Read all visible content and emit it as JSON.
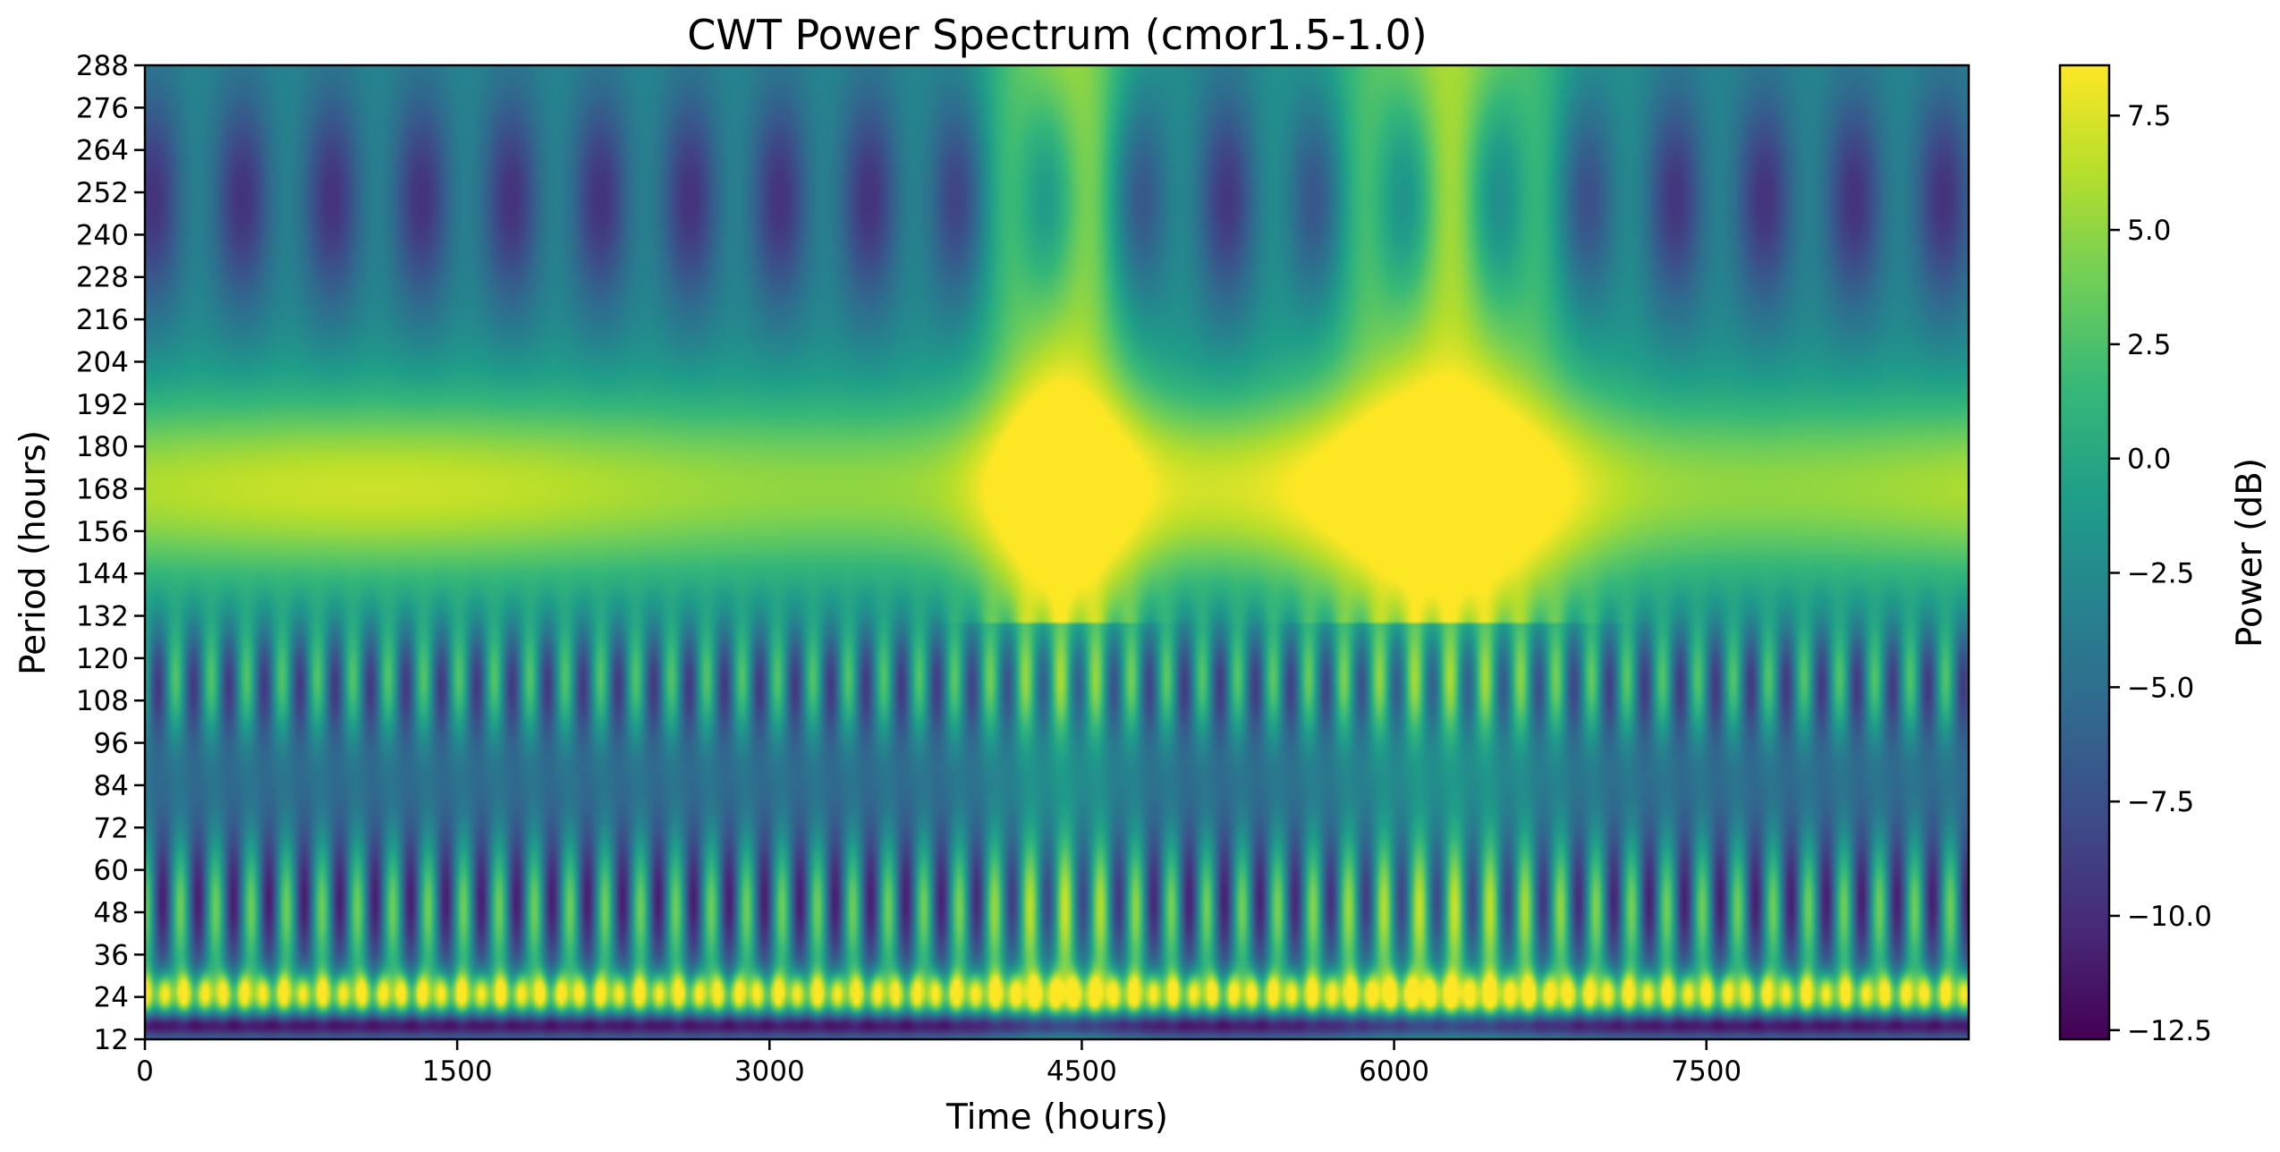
{
  "chart_data": {
    "type": "heatmap",
    "title": "CWT Power Spectrum (cmor1.5-1.0)",
    "xlabel": "Time (hours)",
    "ylabel": "Period (hours)",
    "colorbar_label": "Power (dB)",
    "colormap": "viridis",
    "grid": false,
    "x_range": [
      0,
      8760
    ],
    "y_range": [
      12,
      288
    ],
    "x_ticks": [
      0,
      1500,
      3000,
      4500,
      6000,
      7500
    ],
    "x_tick_labels": [
      "0",
      "1500",
      "3000",
      "4500",
      "6000",
      "7500"
    ],
    "y_ticks": [
      12,
      24,
      36,
      48,
      60,
      72,
      84,
      96,
      108,
      120,
      132,
      144,
      156,
      168,
      180,
      192,
      204,
      216,
      228,
      240,
      252,
      264,
      276,
      288
    ],
    "y_tick_labels": [
      "12",
      "24",
      "36",
      "48",
      "60",
      "72",
      "84",
      "96",
      "108",
      "120",
      "132",
      "144",
      "156",
      "168",
      "180",
      "192",
      "204",
      "216",
      "228",
      "240",
      "252",
      "264",
      "276",
      "288"
    ],
    "color_range": [
      -12.7,
      8.6
    ],
    "colorbar_ticks": [
      -12.5,
      -10.0,
      -7.5,
      -5.0,
      -2.5,
      0.0,
      2.5,
      5.0,
      7.5
    ],
    "colorbar_tick_labels": [
      "−12.5",
      "−10.0",
      "−7.5",
      "−5.0",
      "−2.5",
      "0.0",
      "2.5",
      "5.0",
      "7.5"
    ],
    "bands": [
      {
        "period_center": 25,
        "power_db": 7.5
      },
      {
        "period_center": 168,
        "power_db": 6.5
      },
      {
        "period_center": 264,
        "power_db": -3.0
      }
    ],
    "high_power_episodes": [
      {
        "time_start": 4150,
        "time_end": 4650,
        "power_db": 8.5
      },
      {
        "time_start": 5850,
        "time_end": 6650,
        "power_db": 8.5
      }
    ]
  }
}
